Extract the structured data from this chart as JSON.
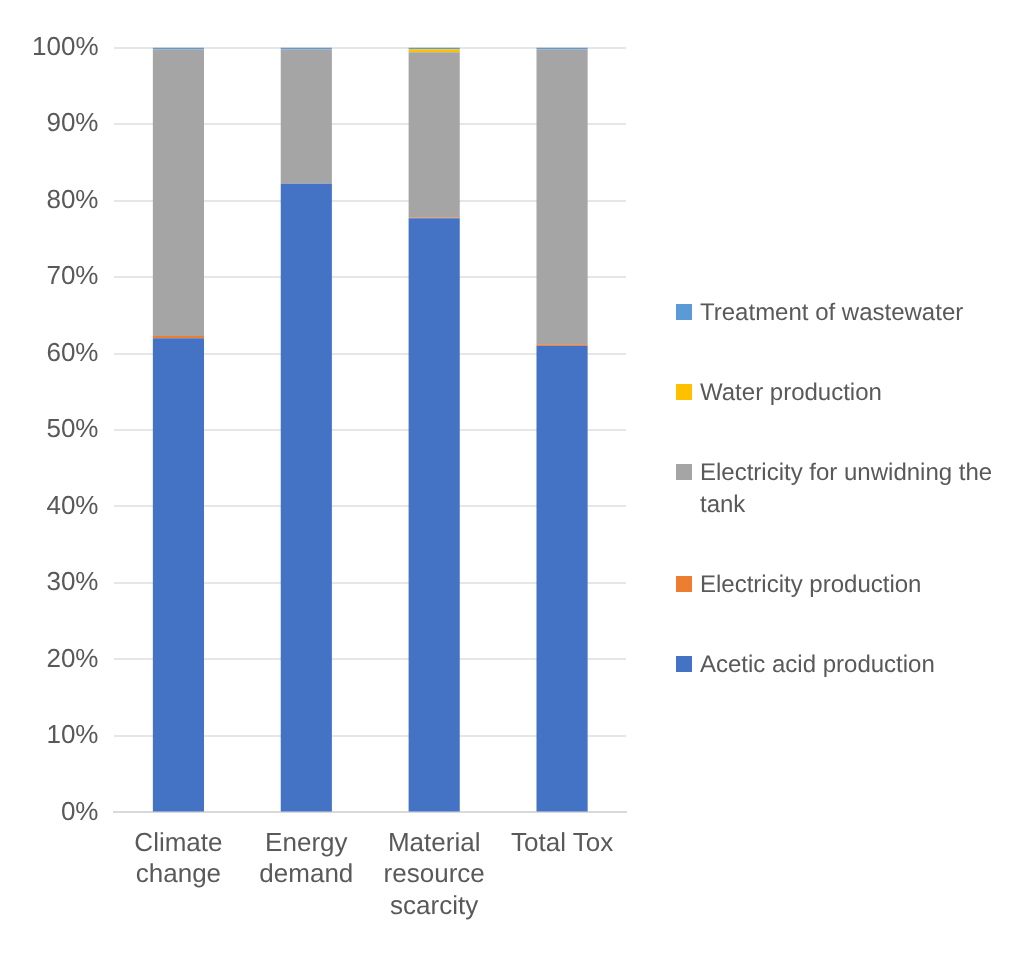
{
  "chart_data": {
    "type": "bar",
    "stacked": true,
    "categories": [
      "Climate change",
      "Energy demand",
      "Material resource scarcity",
      "Total Tox"
    ],
    "series": [
      {
        "name": "Acetic acid production",
        "color": "#4472c4",
        "values": [
          62,
          82.2,
          77.7,
          61
        ]
      },
      {
        "name": "Electricity production",
        "color": "#ed7d31",
        "values": [
          0.3,
          0,
          0.1,
          0.2
        ]
      },
      {
        "name": "Electricity for unwidning the tank",
        "color": "#a5a5a5",
        "values": [
          37.5,
          17.6,
          21.6,
          38.6
        ]
      },
      {
        "name": "Water production",
        "color": "#ffc000",
        "values": [
          0,
          0,
          0.4,
          0
        ]
      },
      {
        "name": "Treatment of wastewater",
        "color": "#5b9bd5",
        "values": [
          0.2,
          0.2,
          0.2,
          0.2
        ]
      }
    ],
    "ylim": [
      0,
      100
    ],
    "yticks": [
      {
        "value": 0,
        "label": "0%"
      },
      {
        "value": 10,
        "label": "10%"
      },
      {
        "value": 20,
        "label": "20%"
      },
      {
        "value": 30,
        "label": "30%"
      },
      {
        "value": 40,
        "label": "40%"
      },
      {
        "value": 50,
        "label": "50%"
      },
      {
        "value": 60,
        "label": "60%"
      },
      {
        "value": 70,
        "label": "70%"
      },
      {
        "value": 80,
        "label": "80%"
      },
      {
        "value": 90,
        "label": "90%"
      },
      {
        "value": 100,
        "label": "100%"
      }
    ],
    "grid": "y",
    "legend": "right"
  }
}
